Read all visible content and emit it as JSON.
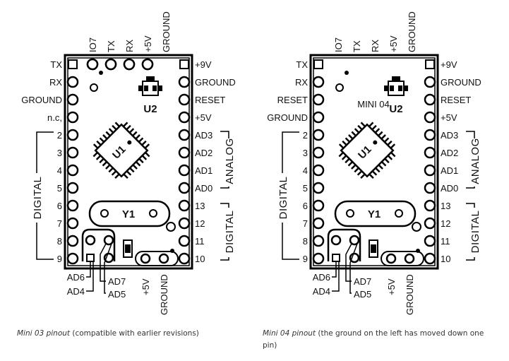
{
  "boards": [
    {
      "top_labels": [
        "IO7",
        "TX",
        "RX",
        "+5V",
        "GROUND"
      ],
      "left_labels": [
        "TX",
        "RX",
        "GROUND",
        "n.c,",
        "2",
        "3",
        "4",
        "5",
        "6",
        "7",
        "8",
        "9"
      ],
      "right_labels": [
        "+9V",
        "GROUND",
        "RESET",
        "+5V",
        "AD3",
        "AD2",
        "AD1",
        "AD0",
        "13",
        "12",
        "11",
        "10"
      ],
      "bottom_left_labels": [
        "AD6",
        "AD4",
        "AD7",
        "AD5"
      ],
      "bottom_right_labels": [
        "+5V",
        "GROUND"
      ],
      "board_label": "",
      "u1": "U1",
      "u2": "U2",
      "y1": "Y1",
      "digital_left": "DIGITAL",
      "analog": "ANALOG",
      "digital_right": "DIGITAL"
    },
    {
      "top_labels": [
        "IO7",
        "TX",
        "RX",
        "+5V",
        "GROUND"
      ],
      "left_labels": [
        "TX",
        "RX",
        "RESET",
        "GROUND",
        "2",
        "3",
        "4",
        "5",
        "6",
        "7",
        "8",
        "9"
      ],
      "right_labels": [
        "+9V",
        "GROUND",
        "RESET",
        "+5V",
        "AD3",
        "AD2",
        "AD1",
        "AD0",
        "13",
        "12",
        "11",
        "10"
      ],
      "bottom_left_labels": [
        "AD6",
        "AD4",
        "AD7",
        "AD5"
      ],
      "bottom_right_labels": [
        "+5V",
        "GROUND"
      ],
      "board_label": "MINI 04",
      "u1": "U1",
      "u2": "U2",
      "y1": "Y1",
      "digital_left": "DIGITAL",
      "analog": "ANALOG",
      "digital_right": "DIGITAL"
    }
  ],
  "captions": [
    {
      "title": "Mini 03 pinout",
      "text": " (compatible with earlier revisions)"
    },
    {
      "title": "Mini 04 pinout",
      "text": " (the ground on the left has moved down one pin)"
    }
  ]
}
